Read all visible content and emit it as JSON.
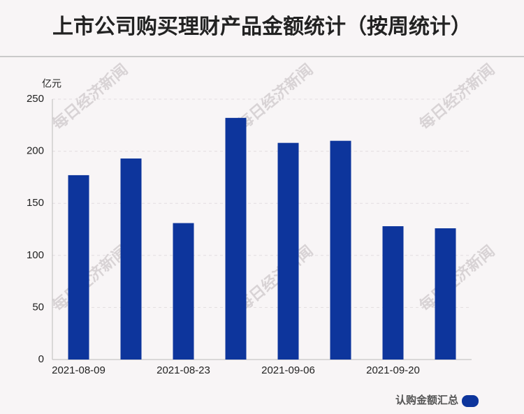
{
  "chart_data": {
    "type": "bar",
    "title": "上市公司购买理财产品金额统计（按周统计）",
    "y_label": "亿元",
    "watermark": "每日经济新闻",
    "categories": [
      "2021-08-09",
      null,
      "2021-08-23",
      null,
      "2021-09-06",
      null,
      "2021-09-20",
      null
    ],
    "series": [
      {
        "name": "认购金额汇总",
        "color": "#0d359c",
        "values": [
          177,
          193,
          131,
          232,
          208,
          210,
          128,
          126
        ]
      }
    ],
    "ylim": [
      0,
      250
    ],
    "yticks": [
      0,
      50,
      100,
      150,
      200,
      250
    ],
    "grid": true,
    "legend": "bottom-right"
  }
}
